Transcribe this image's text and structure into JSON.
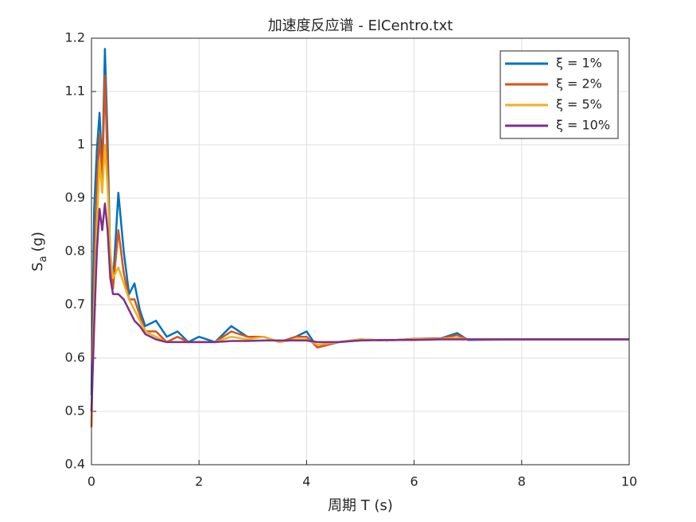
{
  "chart_data": {
    "type": "line",
    "title": "加速度反应谱 - ElCentro.txt",
    "xlabel": "周期 T (s)",
    "ylabel": [
      "S",
      "a",
      "(g)"
    ],
    "x": [
      0,
      0.05,
      0.1,
      0.15,
      0.2,
      0.25,
      0.3,
      0.35,
      0.4,
      0.5,
      0.6,
      0.7,
      0.8,
      0.9,
      1.0,
      1.2,
      1.4,
      1.6,
      1.8,
      2.0,
      2.3,
      2.6,
      2.9,
      3.2,
      3.5,
      3.8,
      4.0,
      4.2,
      4.6,
      5.0,
      5.5,
      6.0,
      6.5,
      6.8,
      7.0,
      8.0,
      9.0,
      10.0
    ],
    "series": [
      {
        "name": "ξ = 1%",
        "color": "#0072BD",
        "values": [
          0.53,
          0.88,
          0.99,
          1.06,
          0.95,
          1.18,
          1.01,
          0.78,
          0.74,
          0.91,
          0.8,
          0.72,
          0.74,
          0.69,
          0.66,
          0.67,
          0.64,
          0.65,
          0.63,
          0.64,
          0.63,
          0.66,
          0.64,
          0.64,
          0.63,
          0.64,
          0.65,
          0.62,
          0.63,
          0.635,
          0.633,
          0.636,
          0.637,
          0.647,
          0.634,
          0.635,
          0.635,
          0.635
        ]
      },
      {
        "name": "ξ = 2%",
        "color": "#D95319",
        "values": [
          0.47,
          0.75,
          0.92,
          1.02,
          0.93,
          1.13,
          0.96,
          0.77,
          0.73,
          0.84,
          0.76,
          0.71,
          0.71,
          0.68,
          0.65,
          0.65,
          0.63,
          0.64,
          0.63,
          0.63,
          0.63,
          0.65,
          0.64,
          0.64,
          0.63,
          0.64,
          0.64,
          0.62,
          0.63,
          0.635,
          0.633,
          0.636,
          0.637,
          0.643,
          0.635,
          0.635,
          0.635,
          0.635
        ]
      },
      {
        "name": "ξ = 5%",
        "color": "#EDB120",
        "values": [
          0.5,
          0.7,
          0.85,
          0.97,
          0.91,
          1.0,
          0.92,
          0.8,
          0.75,
          0.77,
          0.74,
          0.71,
          0.69,
          0.67,
          0.65,
          0.64,
          0.63,
          0.63,
          0.63,
          0.63,
          0.63,
          0.64,
          0.635,
          0.64,
          0.63,
          0.635,
          0.635,
          0.625,
          0.63,
          0.635,
          0.633,
          0.635,
          0.636,
          0.638,
          0.635,
          0.635,
          0.635,
          0.635
        ]
      },
      {
        "name": "ξ = 10%",
        "color": "#7E2F8E",
        "values": [
          0.5,
          0.66,
          0.8,
          0.88,
          0.84,
          0.89,
          0.84,
          0.75,
          0.72,
          0.72,
          0.71,
          0.69,
          0.67,
          0.66,
          0.645,
          0.635,
          0.63,
          0.63,
          0.63,
          0.63,
          0.63,
          0.632,
          0.632,
          0.633,
          0.633,
          0.633,
          0.633,
          0.63,
          0.63,
          0.633,
          0.634,
          0.634,
          0.635,
          0.635,
          0.635,
          0.635,
          0.635,
          0.635
        ]
      }
    ],
    "xlim": [
      0,
      10
    ],
    "xticks": [
      0,
      2,
      4,
      6,
      8,
      10
    ],
    "ylim": [
      0.4,
      1.2
    ],
    "yticks": [
      0.4,
      0.5,
      0.6,
      0.7,
      0.8,
      0.9,
      1,
      1.1,
      1.2
    ],
    "grid": true,
    "legend": "northeast"
  }
}
